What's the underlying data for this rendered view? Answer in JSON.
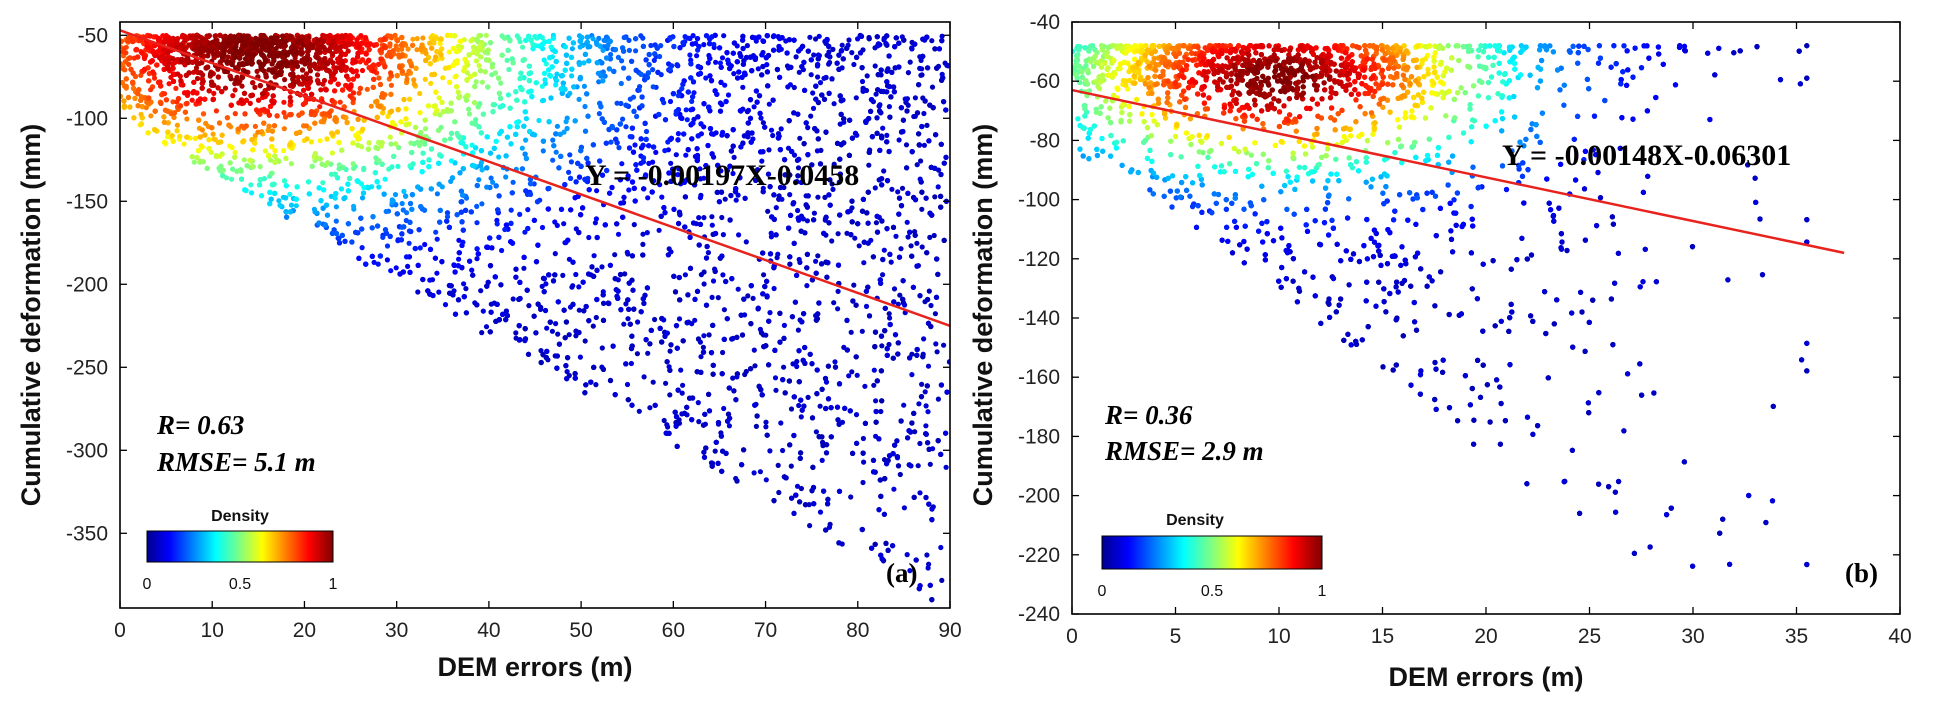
{
  "colors": {
    "fit_line": "#e8231d",
    "axis": "#000000",
    "colormap": [
      "#00008f",
      "#0000ff",
      "#0080ff",
      "#00ffff",
      "#80ff80",
      "#ffff00",
      "#ff8000",
      "#ff0000",
      "#800000"
    ]
  },
  "chart_data": [
    {
      "type": "scatter",
      "panel": "(a)",
      "xlabel": "DEM errors (m)",
      "ylabel": "Cumulative deformation (mm)",
      "xlim": [
        0,
        90
      ],
      "ylim": [
        -395,
        -42
      ],
      "xticks": [
        0,
        10,
        20,
        30,
        40,
        50,
        60,
        70,
        80,
        90
      ],
      "yticks": [
        -350,
        -300,
        -250,
        -200,
        -150,
        -100,
        -50
      ],
      "grid": false,
      "fit_equation": "Y = -0.00197X-0.0458",
      "fit_line": {
        "x": [
          0,
          90
        ],
        "y": [
          -47,
          -225
        ]
      },
      "stats": {
        "r": "R= 0.63",
        "rmse": "RMSE= 5.1 m"
      },
      "colorbar": {
        "title": "Density",
        "ticks": [
          "0",
          "0.5",
          "1"
        ],
        "placement": "bottom-left"
      },
      "density_peak": {
        "x": 15,
        "y": -63
      },
      "point_count": 9000
    },
    {
      "type": "scatter",
      "panel": "(b)",
      "xlabel": "DEM errors (m)",
      "ylabel": "Cumulative deformation (mm)",
      "xlim": [
        0,
        40
      ],
      "ylim": [
        -240,
        -40
      ],
      "xticks": [
        0,
        5,
        10,
        15,
        20,
        25,
        30,
        35,
        40
      ],
      "yticks": [
        -240,
        -220,
        -200,
        -180,
        -160,
        -140,
        -120,
        -100,
        -80,
        -60,
        -40
      ],
      "grid": false,
      "fit_equation": "Y = -0.00148X-0.06301",
      "fit_line": {
        "x": [
          0,
          37.3
        ],
        "y": [
          -63,
          -118
        ]
      },
      "stats": {
        "r": "R= 0.36",
        "rmse": "RMSE= 2.9 m"
      },
      "colorbar": {
        "title": "Density",
        "ticks": [
          "0",
          "0.5",
          "1"
        ],
        "placement": "bottom-left"
      },
      "density_peak": {
        "x": 10,
        "y": -59
      },
      "point_count": 7000
    }
  ]
}
